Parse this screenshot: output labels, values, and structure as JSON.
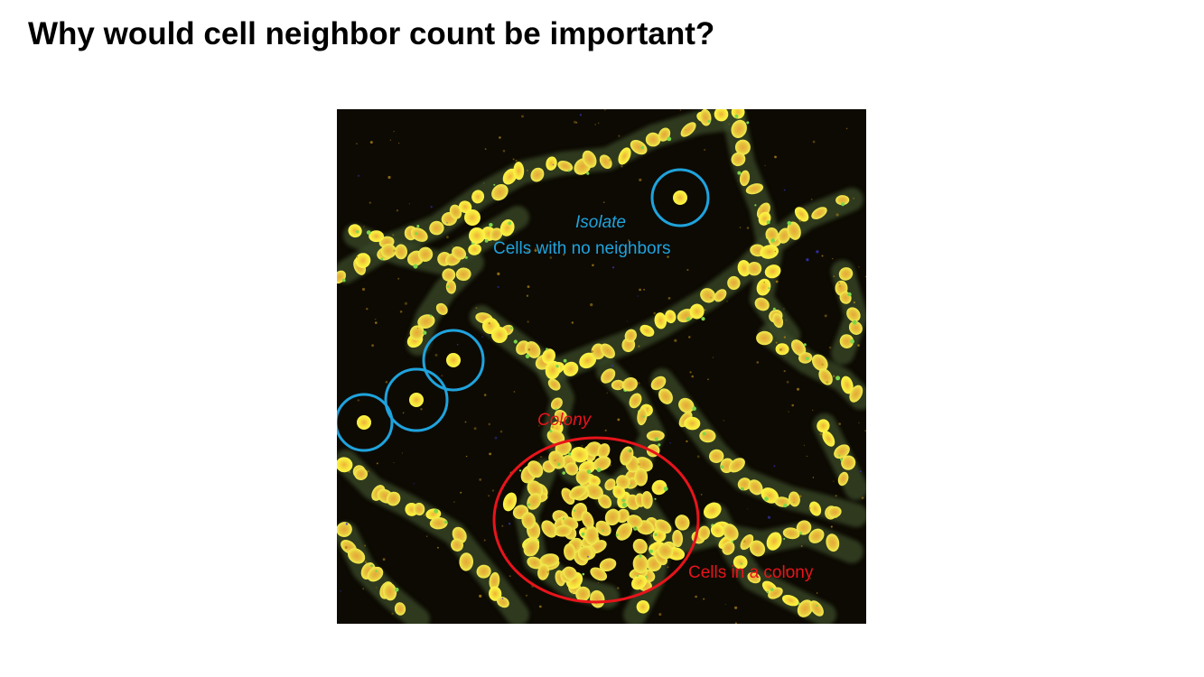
{
  "slide": {
    "title": "Why would cell neighbor count be important?"
  },
  "micrograph": {
    "description_icon": "fluorescence-microscopy-image",
    "colors": {
      "background": "#0d0a03",
      "isolate_marker": "#1fa3dd",
      "colony_marker": "#e8141b"
    }
  },
  "annotations": {
    "isolate_title": "Isolate",
    "isolate_caption": "Cells with no neighbors",
    "colony_title": "Colony",
    "colony_caption": "Cells in a colony"
  }
}
